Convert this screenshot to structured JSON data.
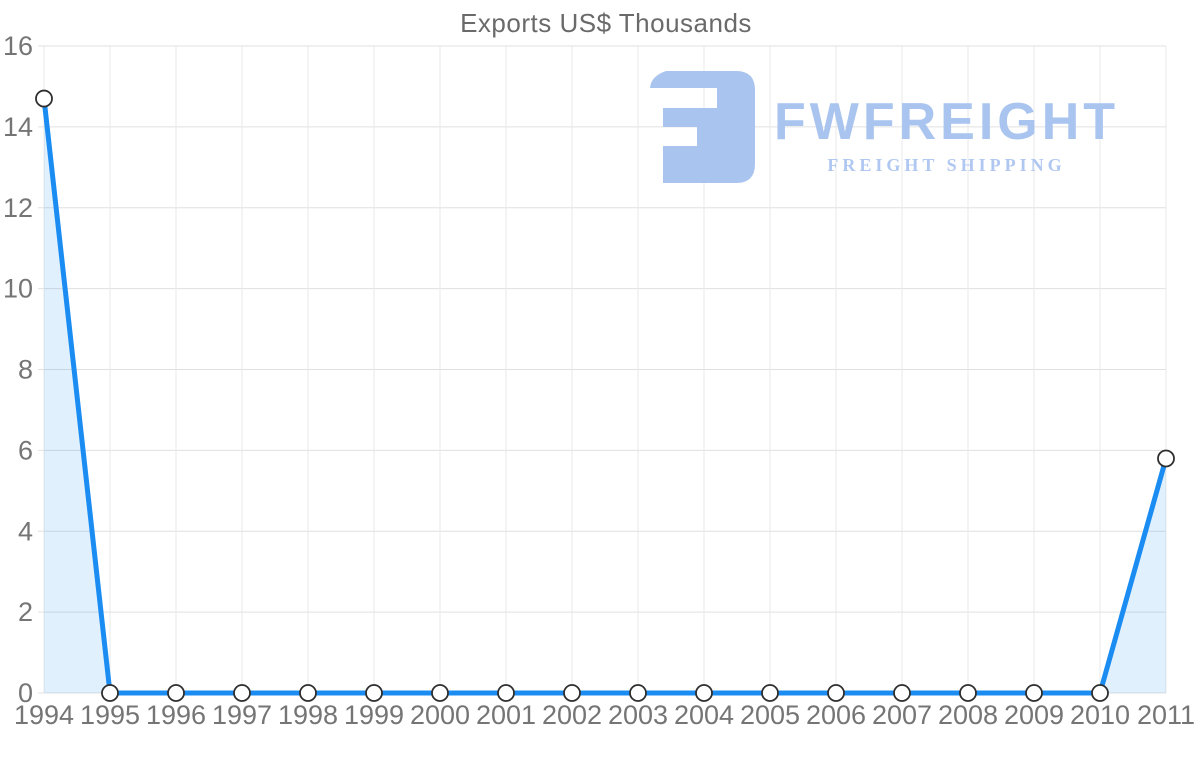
{
  "title": "Exports US$ Thousands",
  "logo": {
    "brand": "FWFREIGHT",
    "tagline": "FREIGHT SHIPPING",
    "brand_color": "#a9c4ef",
    "tagline_color": "#b0c8f1"
  },
  "colors": {
    "line": "#1b8df2",
    "area": "rgba(27,141,242,0.13)",
    "grid_horizontal": "#e0e0e0",
    "grid_vertical": "#e9e9e9",
    "tick_label": "#757575",
    "title": "#6a6a6a",
    "marker_fill": "#ffffff",
    "marker_stroke": "#2f2f2f"
  },
  "chart_data": {
    "type": "area",
    "title": "Exports US$ Thousands",
    "x": [
      1994,
      1995,
      1996,
      1997,
      1998,
      1999,
      2000,
      2001,
      2002,
      2003,
      2004,
      2005,
      2006,
      2007,
      2008,
      2009,
      2010,
      2011
    ],
    "series": [
      {
        "name": "Exports US$ Thousands",
        "values": [
          14.7,
          0,
          0,
          0,
          0,
          0,
          0,
          0,
          0,
          0,
          0,
          0,
          0,
          0,
          0,
          0,
          0,
          5.8
        ]
      }
    ],
    "xlabel": "",
    "ylabel": "",
    "ylim": [
      0,
      16
    ],
    "yticks": [
      0,
      2,
      4,
      6,
      8,
      10,
      12,
      14,
      16
    ],
    "grid": true,
    "legend": false,
    "markers": "circle"
  }
}
